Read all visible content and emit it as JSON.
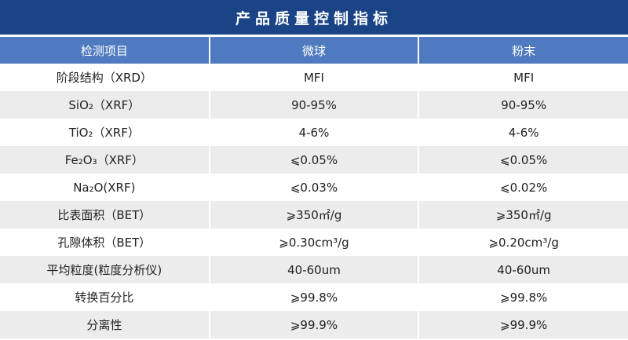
{
  "title": "产品质量控制指标",
  "colors": {
    "title_bg": "#1b4487",
    "header_bg": "#4f7abf",
    "alt_row_bg": "#ececec"
  },
  "headers": [
    "检测项目",
    "微球",
    "粉末"
  ],
  "rows": [
    [
      "阶段结构（XRD）",
      "MFI",
      "MFI"
    ],
    [
      "SiO₂（XRF）",
      "90-95%",
      "90-95%"
    ],
    [
      "TiO₂（XRF）",
      "4-6%",
      "4-6%"
    ],
    [
      "Fe₂O₃（XRF）",
      "⩽0.05%",
      "⩽0.05%"
    ],
    [
      "Na₂O(XRF)",
      "⩽0.03%",
      "⩽0.02%"
    ],
    [
      "比表面积（BET）",
      "⩾350㎡/g",
      "⩾350㎡/g"
    ],
    [
      "孔隙体积（BET）",
      "⩾0.30cm³/g",
      "⩾0.20cm³/g"
    ],
    [
      "平均粒度(粒度分析仪)",
      "40-60um",
      "40-60um"
    ],
    [
      "转换百分比",
      "⩾99.8%",
      "⩾99.8%"
    ],
    [
      "分离性",
      "⩾99.9%",
      "⩾99.9%"
    ]
  ]
}
